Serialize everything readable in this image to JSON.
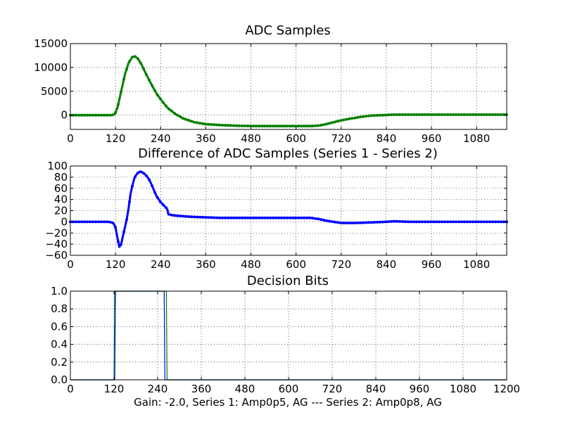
{
  "chart_data": [
    {
      "type": "line",
      "title": "ADC Samples",
      "xlabel": "",
      "ylabel": "",
      "xlim": [
        0,
        1160
      ],
      "ylim": [
        -3000,
        15000
      ],
      "x_ticks": [
        0,
        120,
        240,
        360,
        480,
        600,
        720,
        840,
        960,
        1080
      ],
      "x_tick_labels": [
        "0",
        "120",
        "240",
        "360",
        "480",
        "600",
        "720",
        "840",
        "960",
        "1080"
      ],
      "y_ticks": [
        0,
        5000,
        10000,
        15000
      ],
      "y_tick_labels": [
        "0",
        "5000",
        "10000",
        "15000"
      ],
      "grid": true,
      "series": [
        {
          "name": "ADC samples",
          "color": "#008000",
          "marker": "dot",
          "x": [
            0,
            110,
            118,
            125,
            135,
            145,
            155,
            165,
            172,
            180,
            190,
            200,
            215,
            230,
            245,
            260,
            280,
            300,
            330,
            360,
            400,
            450,
            500,
            550,
            600,
            640,
            660,
            680,
            700,
            720,
            740,
            770,
            800,
            830,
            860,
            900,
            1000,
            1100,
            1160
          ],
          "values": [
            0,
            0,
            200,
            1500,
            5000,
            8500,
            11000,
            12200,
            12300,
            11800,
            10500,
            8800,
            6500,
            4400,
            2800,
            1400,
            200,
            -700,
            -1500,
            -1900,
            -2100,
            -2250,
            -2300,
            -2300,
            -2300,
            -2300,
            -2200,
            -1900,
            -1500,
            -1100,
            -800,
            -400,
            -100,
            0,
            100,
            100,
            100,
            100,
            100
          ]
        }
      ]
    },
    {
      "type": "line",
      "title": "Difference of ADC Samples (Series 1 - Series 2)",
      "xlabel": "",
      "ylabel": "",
      "xlim": [
        0,
        1160
      ],
      "ylim": [
        -60,
        100
      ],
      "x_ticks": [
        0,
        120,
        240,
        360,
        480,
        600,
        720,
        840,
        960,
        1080
      ],
      "x_tick_labels": [
        "0",
        "120",
        "240",
        "360",
        "480",
        "600",
        "720",
        "840",
        "960",
        "1080"
      ],
      "y_ticks": [
        -60,
        -40,
        -20,
        0,
        20,
        40,
        60,
        80,
        100
      ],
      "y_tick_labels": [
        "−60",
        "−40",
        "−20",
        "0",
        "20",
        "40",
        "60",
        "80",
        "100"
      ],
      "grid": true,
      "series": [
        {
          "name": "Series 1 - Series 2",
          "color": "#0000ff",
          "marker": "dot",
          "x": [
            0,
            100,
            110,
            115,
            120,
            125,
            130,
            135,
            140,
            145,
            150,
            155,
            160,
            165,
            170,
            175,
            180,
            185,
            190,
            195,
            200,
            205,
            210,
            215,
            220,
            225,
            230,
            235,
            240,
            245,
            250,
            255,
            258,
            260,
            265,
            270,
            280,
            300,
            320,
            360,
            400,
            480,
            560,
            600,
            640,
            660,
            680,
            700,
            720,
            760,
            800,
            840,
            860,
            900,
            960,
            1000,
            1080,
            1160
          ],
          "values": [
            0,
            0,
            -1,
            -3,
            -10,
            -28,
            -45,
            -40,
            -25,
            -10,
            5,
            25,
            50,
            65,
            78,
            84,
            88,
            90,
            89,
            87,
            84,
            80,
            75,
            68,
            60,
            52,
            45,
            40,
            35,
            32,
            28,
            25,
            22,
            14,
            13,
            12,
            11,
            10,
            9,
            8,
            7,
            7,
            7,
            7,
            7,
            5,
            2,
            0,
            -2,
            -2,
            -1,
            0,
            1,
            0,
            0,
            0,
            0,
            0
          ]
        }
      ]
    },
    {
      "type": "line",
      "title": "Decision Bits",
      "xlabel": "Gain: -2.0, Series 1: Amp0p5, AG --- Series 2: Amp0p8, AG",
      "ylabel": "",
      "xlim": [
        0,
        1200
      ],
      "ylim": [
        0.0,
        1.0
      ],
      "x_ticks": [
        0,
        120,
        240,
        360,
        480,
        600,
        720,
        840,
        960,
        1080,
        1200
      ],
      "x_tick_labels": [
        "0",
        "120",
        "240",
        "360",
        "480",
        "600",
        "720",
        "840",
        "960",
        "1080",
        "1200"
      ],
      "y_ticks": [
        0.0,
        0.2,
        0.4,
        0.6,
        0.8,
        1.0
      ],
      "y_tick_labels": [
        "0.0",
        "0.2",
        "0.4",
        "0.6",
        "0.8",
        "1.0"
      ],
      "grid": true,
      "series": [
        {
          "name": "Decision bit (blue)",
          "color": "#0000ff",
          "x": [
            0,
            122,
            124,
            258,
            260,
            1200
          ],
          "values": [
            0,
            0,
            1,
            1,
            0,
            0
          ]
        },
        {
          "name": "Decision bit (green)",
          "color": "#008000",
          "x": [
            0,
            120,
            122,
            264,
            266,
            1200
          ],
          "values": [
            0,
            0,
            1,
            1,
            0,
            0
          ]
        }
      ]
    }
  ]
}
